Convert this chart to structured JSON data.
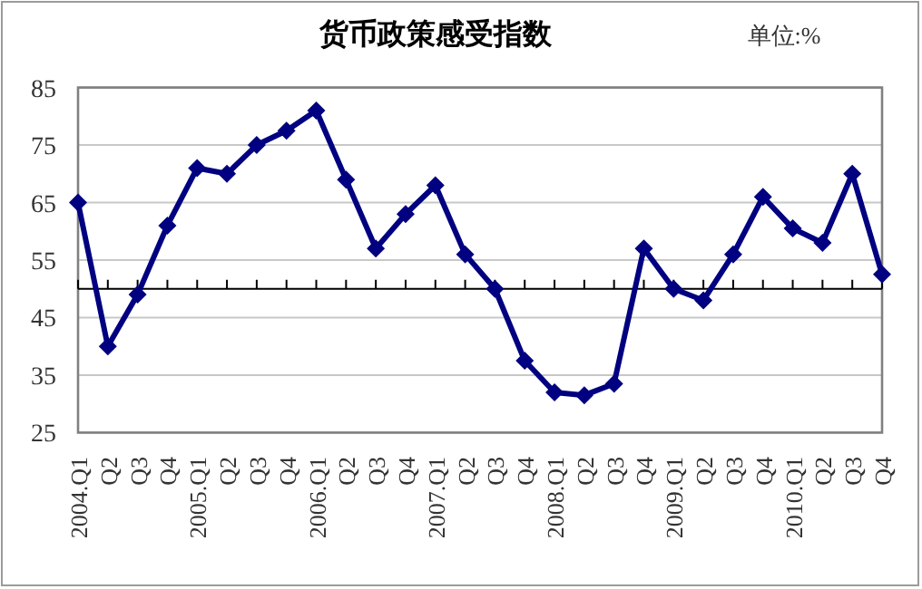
{
  "chart_data": {
    "type": "line",
    "title": "货币政策感受指数",
    "annotations": [
      "单位:%"
    ],
    "categories": [
      "2004.Q1",
      "Q2",
      "Q3",
      "Q4",
      "2005.Q1",
      "Q2",
      "Q3",
      "Q4",
      "2006.Q1",
      "Q2",
      "Q3",
      "Q4",
      "2007.Q1",
      "Q2",
      "Q3",
      "Q4",
      "2008.Q1",
      "Q2",
      "Q3",
      "Q4",
      "2009.Q1",
      "Q2",
      "Q3",
      "Q4",
      "2010.Q1",
      "Q2",
      "Q3",
      "Q4"
    ],
    "series": [
      {
        "color": "#000080",
        "values": [
          65,
          40,
          49,
          61,
          71,
          70,
          75,
          77.5,
          81,
          69,
          57,
          63,
          68,
          56,
          50,
          37.5,
          32,
          31.5,
          33.5,
          57,
          50,
          48,
          56,
          66,
          60.5,
          58,
          70,
          52.5
        ]
      }
    ],
    "ylim": [
      25,
      85
    ],
    "yticks": [
      25,
      35,
      45,
      55,
      65,
      75,
      85
    ],
    "grid": "y",
    "marker": "diamond",
    "line_style": "solid",
    "ref_lines": [
      {
        "axis": "y",
        "value": 50,
        "color": "#000000"
      }
    ]
  }
}
